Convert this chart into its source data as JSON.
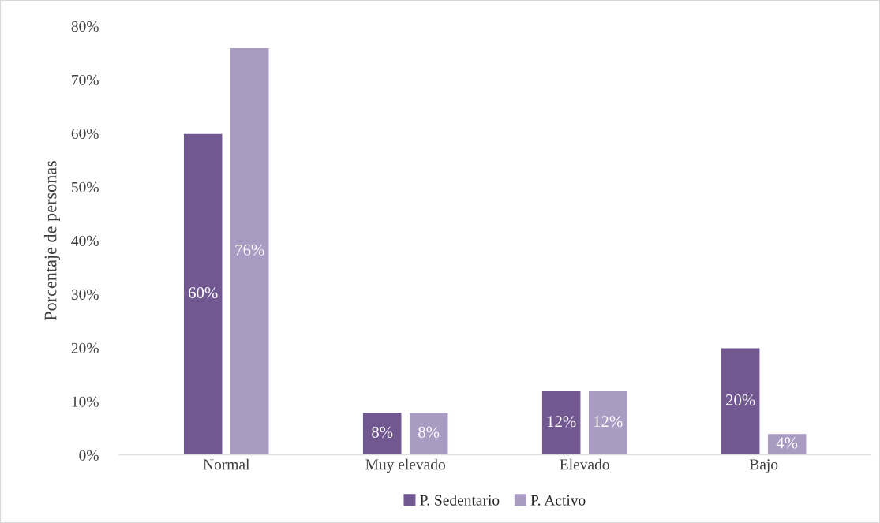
{
  "chart_data": {
    "type": "bar",
    "ylabel": "Porcentaje de personas",
    "categories": [
      "Normal",
      "Muy elevado",
      "Elevado",
      "Bajo"
    ],
    "series": [
      {
        "name": "P. Sedentario",
        "color": "#715891",
        "values": [
          60,
          8,
          12,
          20
        ],
        "value_labels": [
          "60%",
          "8%",
          "12%",
          "20%"
        ]
      },
      {
        "name": "P. Activo",
        "color": "#a99bc1",
        "values": [
          76,
          8,
          12,
          4
        ],
        "value_labels": [
          "76%",
          "8%",
          "12%",
          "4%"
        ]
      }
    ],
    "ylim": [
      0,
      80
    ],
    "yticks": [
      {
        "value": 0,
        "label": "0%"
      },
      {
        "value": 10,
        "label": "10%"
      },
      {
        "value": 20,
        "label": "20%"
      },
      {
        "value": 30,
        "label": "30%"
      },
      {
        "value": 40,
        "label": "40%"
      },
      {
        "value": 50,
        "label": "50%"
      },
      {
        "value": 60,
        "label": "60%"
      },
      {
        "value": 70,
        "label": "70%"
      },
      {
        "value": 80,
        "label": "80%"
      }
    ],
    "grid": false,
    "legend": "bottom"
  }
}
